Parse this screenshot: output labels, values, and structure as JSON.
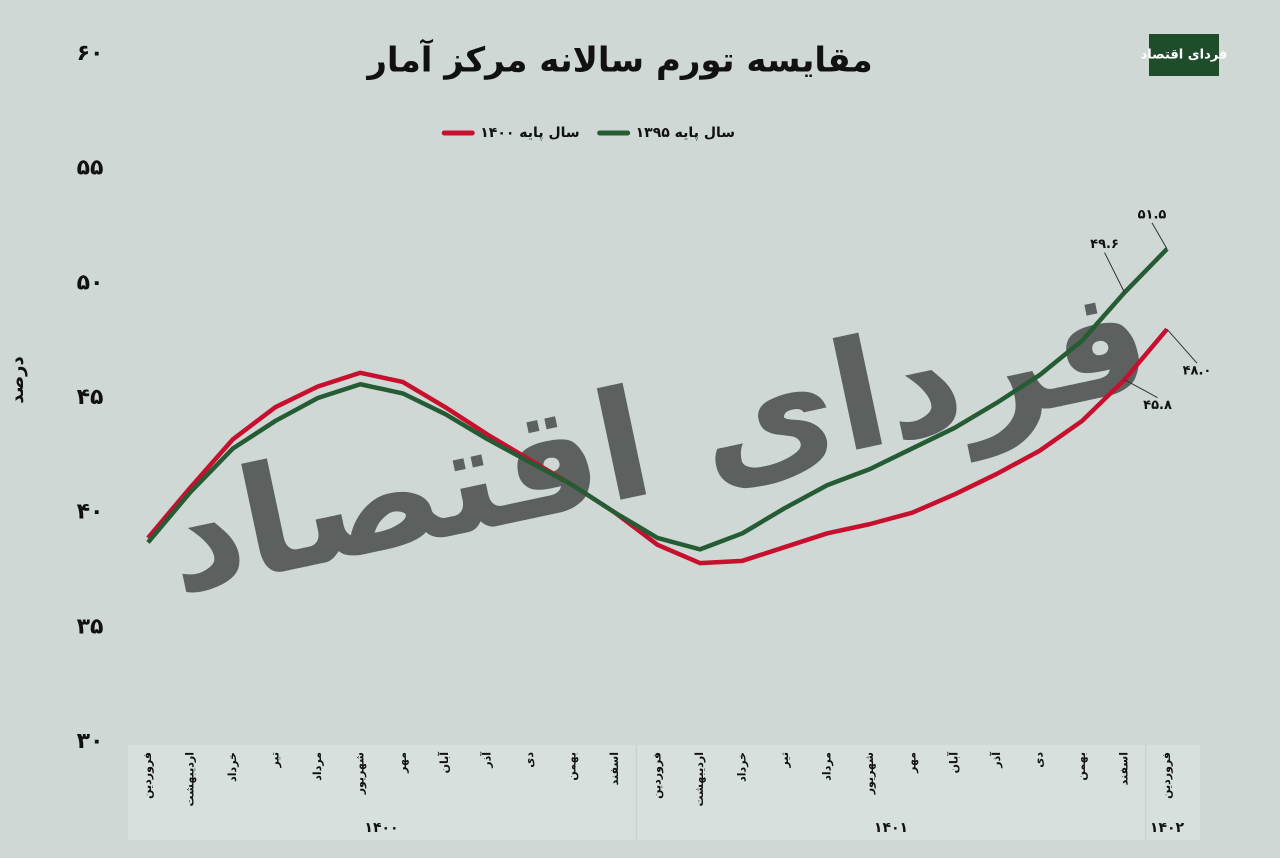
{
  "logo": "فردای اقتصاد",
  "chart_data": {
    "type": "line",
    "title": "مقایسه تورم سالانه مرکز آمار",
    "y_label": "درصد",
    "categories": [
      "فروردین",
      "اردیبهشت",
      "خرداد",
      "تیر",
      "مرداد",
      "شهریور",
      "مهر",
      "آبان",
      "آذر",
      "دی",
      "بهمن",
      "اسفند",
      "فروردین",
      "اردیبهشت",
      "خرداد",
      "تیر",
      "مرداد",
      "شهریور",
      "مهر",
      "آبان",
      "آذر",
      "دی",
      "بهمن",
      "اسفند",
      "فروردین"
    ],
    "year_labels": [
      "۱۴۰۰",
      "۱۴۰۱",
      "۱۴۰۲"
    ],
    "series": [
      {
        "name": "سال پایه ۱۳۹۵",
        "color": "#255c34",
        "values": [
          38.7,
          40.9,
          42.8,
          44.0,
          45.0,
          45.6,
          45.2,
          44.3,
          43.2,
          42.2,
          41.2,
          40.0,
          38.9,
          38.4,
          39.1,
          40.2,
          41.2,
          41.9,
          42.8,
          43.7,
          44.8,
          46.0,
          47.5,
          49.6,
          51.5
        ],
        "value_labels": [
          null,
          null,
          null,
          null,
          null,
          null,
          null,
          null,
          null,
          null,
          null,
          null,
          null,
          null,
          null,
          null,
          null,
          null,
          null,
          null,
          null,
          null,
          null,
          "۴۹.۶",
          "۵۱.۵"
        ]
      },
      {
        "name": "سال پایه ۱۴۰۰",
        "color": "#c8102e",
        "values": [
          38.9,
          41.1,
          43.2,
          44.6,
          45.5,
          46.1,
          45.7,
          44.6,
          43.4,
          42.3,
          41.2,
          40.0,
          38.6,
          37.8,
          37.9,
          38.5,
          39.1,
          39.5,
          40.0,
          40.8,
          41.7,
          42.7,
          44.0,
          45.8,
          48.0
        ],
        "value_labels": [
          null,
          null,
          null,
          null,
          null,
          null,
          null,
          null,
          null,
          null,
          null,
          null,
          null,
          null,
          null,
          null,
          null,
          null,
          null,
          null,
          null,
          null,
          null,
          "۴۵.۸",
          "۴۸.۰"
        ]
      }
    ],
    "ylim": [
      30,
      60
    ],
    "yticks": [
      {
        "value": 30,
        "label": "۳۰"
      },
      {
        "value": 35,
        "label": "۳۵"
      },
      {
        "value": 40,
        "label": "۴۰"
      },
      {
        "value": 45,
        "label": "۴۵"
      },
      {
        "value": 50,
        "label": "۵۰"
      },
      {
        "value": 55,
        "label": "۵۵"
      },
      {
        "value": 60,
        "label": "۶۰"
      }
    ]
  }
}
